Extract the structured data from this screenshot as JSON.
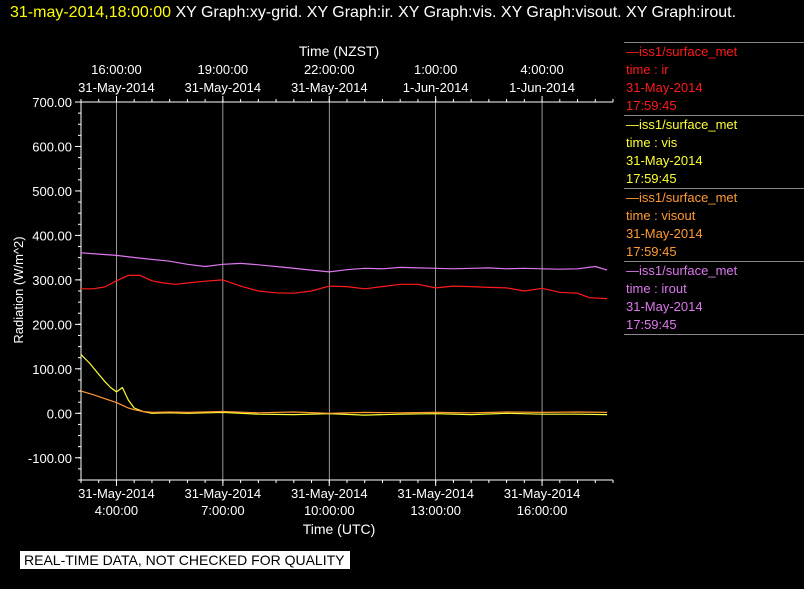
{
  "header": {
    "timestamp": "31-may-2014,18:00:00",
    "titles": "XY Graph:xy-grid.  XY Graph:ir.  XY Graph:vis.  XY Graph:visout.  XY Graph:irout."
  },
  "colors": {
    "ir": "#ff1a1a",
    "vis": "#ffff33",
    "visout": "#ff9a33",
    "irout": "#dd77ee",
    "grid": "#ffffff",
    "background": "#000000"
  },
  "legend": [
    {
      "key": "ir",
      "source": "—iss1/surface_met",
      "label": "time : ir",
      "date": "31-May-2014",
      "time": "17:59:45"
    },
    {
      "key": "vis",
      "source": "—iss1/surface_met",
      "label": "time : vis",
      "date": "31-May-2014",
      "time": "17:59:45"
    },
    {
      "key": "visout",
      "source": "—iss1/surface_met",
      "label": "time : visout",
      "date": "31-May-2014",
      "time": "17:59:45"
    },
    {
      "key": "irout",
      "source": "—iss1/surface_met",
      "label": "time : irout",
      "date": "31-May-2014",
      "time": "17:59:45"
    }
  ],
  "notice": "REAL-TIME DATA, NOT CHECKED FOR QUALITY",
  "chart_data": {
    "type": "line",
    "title": "",
    "xlabel": "Time (UTC)",
    "x2label": "Time (NZST)",
    "ylabel": "Radiation (W/m^2)",
    "xlim": [
      "31-May-2014 03:00",
      "31-May-2014 18:00"
    ],
    "ylim": [
      -150,
      700
    ],
    "grid": "vertical",
    "x_ticks": [
      {
        "t": "31-May-2014 04:00",
        "date": "31-May-2014",
        "time": "4:00:00"
      },
      {
        "t": "31-May-2014 07:00",
        "date": "31-May-2014",
        "time": "7:00:00"
      },
      {
        "t": "31-May-2014 10:00",
        "date": "31-May-2014",
        "time": "10:00:00"
      },
      {
        "t": "31-May-2014 13:00",
        "date": "31-May-2014",
        "time": "13:00:00"
      },
      {
        "t": "31-May-2014 16:00",
        "date": "31-May-2014",
        "time": "16:00:00"
      }
    ],
    "x2_ticks": [
      {
        "t": "31-May-2014 04:00",
        "time": "16:00:00",
        "date": "31-May-2014"
      },
      {
        "t": "31-May-2014 07:00",
        "time": "19:00:00",
        "date": "31-May-2014"
      },
      {
        "t": "31-May-2014 10:00",
        "time": "22:00:00",
        "date": "31-May-2014"
      },
      {
        "t": "31-May-2014 13:00",
        "time": "1:00:00",
        "date": "1-Jun-2014"
      },
      {
        "t": "31-May-2014 16:00",
        "time": "4:00:00",
        "date": "1-Jun-2014"
      }
    ],
    "y_ticks": [
      {
        "v": 700,
        "label": "700.00"
      },
      {
        "v": 600,
        "label": "600.00"
      },
      {
        "v": 500,
        "label": "500.00"
      },
      {
        "v": 400,
        "label": "400.00"
      },
      {
        "v": 300,
        "label": "300.00"
      },
      {
        "v": 200,
        "label": "200.00"
      },
      {
        "v": 100,
        "label": "100.00"
      },
      {
        "v": 0,
        "label": "0.00"
      },
      {
        "v": -100,
        "label": "-100.00"
      }
    ],
    "series": [
      {
        "key": "irout",
        "x": [
          "31-May-2014 03:00",
          "31-May-2014 03:30",
          "31-May-2014 04:00",
          "31-May-2014 04:45",
          "31-May-2014 05:30",
          "31-May-2014 06:00",
          "31-May-2014 06:30",
          "31-May-2014 07:00",
          "31-May-2014 07:30",
          "31-May-2014 08:00",
          "31-May-2014 08:45",
          "31-May-2014 09:30",
          "31-May-2014 10:00",
          "31-May-2014 10:30",
          "31-May-2014 11:00",
          "31-May-2014 11:30",
          "31-May-2014 12:00",
          "31-May-2014 12:30",
          "31-May-2014 13:00",
          "31-May-2014 13:30",
          "31-May-2014 14:00",
          "31-May-2014 14:30",
          "31-May-2014 15:00",
          "31-May-2014 15:30",
          "31-May-2014 16:00",
          "31-May-2014 16:30",
          "31-May-2014 17:00",
          "31-May-2014 17:30",
          "31-May-2014 17:50"
        ],
        "y": [
          361,
          358,
          355,
          348,
          342,
          335,
          330,
          335,
          337,
          334,
          328,
          322,
          318,
          323,
          326,
          325,
          328,
          327,
          326,
          325,
          326,
          327,
          325,
          326,
          325,
          324,
          325,
          330,
          322
        ]
      },
      {
        "key": "ir",
        "x": [
          "31-May-2014 03:00",
          "31-May-2014 03:20",
          "31-May-2014 03:40",
          "31-May-2014 04:00",
          "31-May-2014 04:20",
          "31-May-2014 04:40",
          "31-May-2014 05:00",
          "31-May-2014 05:20",
          "31-May-2014 05:40",
          "31-May-2014 06:00",
          "31-May-2014 06:30",
          "31-May-2014 07:00",
          "31-May-2014 07:30",
          "31-May-2014 08:00",
          "31-May-2014 08:30",
          "31-May-2014 09:00",
          "31-May-2014 09:30",
          "31-May-2014 10:00",
          "31-May-2014 10:30",
          "31-May-2014 11:00",
          "31-May-2014 11:30",
          "31-May-2014 12:00",
          "31-May-2014 12:30",
          "31-May-2014 13:00",
          "31-May-2014 13:30",
          "31-May-2014 14:00",
          "31-May-2014 14:30",
          "31-May-2014 15:00",
          "31-May-2014 15:30",
          "31-May-2014 16:00",
          "31-May-2014 16:30",
          "31-May-2014 17:00",
          "31-May-2014 17:20",
          "31-May-2014 17:50"
        ],
        "y": [
          280,
          280,
          284,
          298,
          310,
          310,
          298,
          293,
          290,
          293,
          297,
          300,
          286,
          275,
          271,
          270,
          275,
          286,
          285,
          280,
          285,
          290,
          290,
          282,
          286,
          285,
          283,
          282,
          275,
          281,
          272,
          270,
          260,
          258
        ]
      },
      {
        "key": "vis",
        "x": [
          "31-May-2014 03:00",
          "31-May-2014 03:15",
          "31-May-2014 03:30",
          "31-May-2014 03:40",
          "31-May-2014 03:50",
          "31-May-2014 04:00",
          "31-May-2014 04:10",
          "31-May-2014 04:20",
          "31-May-2014 04:30",
          "31-May-2014 04:45",
          "31-May-2014 05:00",
          "31-May-2014 05:30",
          "31-May-2014 06:00",
          "31-May-2014 07:00",
          "31-May-2014 08:00",
          "31-May-2014 09:00",
          "31-May-2014 10:00",
          "31-May-2014 11:00",
          "31-May-2014 12:00",
          "31-May-2014 13:00",
          "31-May-2014 14:00",
          "31-May-2014 15:00",
          "31-May-2014 16:00",
          "31-May-2014 17:00",
          "31-May-2014 17:50"
        ],
        "y": [
          132,
          112,
          88,
          72,
          58,
          48,
          58,
          30,
          12,
          4,
          0,
          1,
          0,
          2,
          -2,
          -3,
          -1,
          -4,
          -2,
          -1,
          -3,
          0,
          -2,
          -2,
          -3
        ]
      },
      {
        "key": "visout",
        "x": [
          "31-May-2014 03:00",
          "31-May-2014 03:20",
          "31-May-2014 03:40",
          "31-May-2014 04:00",
          "31-May-2014 04:10",
          "31-May-2014 04:20",
          "31-May-2014 04:30",
          "31-May-2014 04:45",
          "31-May-2014 05:00",
          "31-May-2014 05:30",
          "31-May-2014 06:00",
          "31-May-2014 07:00",
          "31-May-2014 08:00",
          "31-May-2014 09:00",
          "31-May-2014 10:00",
          "31-May-2014 11:00",
          "31-May-2014 12:00",
          "31-May-2014 13:00",
          "31-May-2014 14:00",
          "31-May-2014 15:00",
          "31-May-2014 16:00",
          "31-May-2014 17:00",
          "31-May-2014 17:50"
        ],
        "y": [
          50,
          42,
          33,
          24,
          18,
          12,
          8,
          4,
          2,
          3,
          2,
          4,
          1,
          3,
          0,
          2,
          1,
          2,
          1,
          3,
          2,
          3,
          2
        ]
      }
    ]
  }
}
